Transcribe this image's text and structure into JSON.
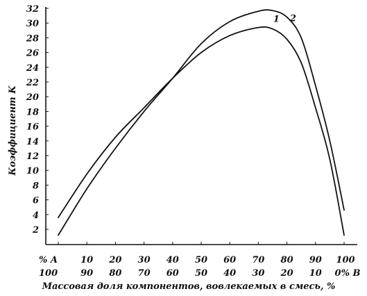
{
  "chart_data": {
    "type": "line",
    "ylabel": "Коэффициент K",
    "xlabel": "Массовая доля компонентов, вовлекаемых в смесь, %",
    "ylim": [
      0,
      32
    ],
    "xlim": [
      0,
      100
    ],
    "yticks": [
      "2",
      "4",
      "6",
      "8",
      "10",
      "12",
      "14",
      "16",
      "18",
      "20",
      "22",
      "24",
      "26",
      "28",
      "30",
      "32"
    ],
    "xticks_a": [
      "% A",
      "10",
      "20",
      "30",
      "40",
      "50",
      "60",
      "70",
      "80",
      "90",
      "100"
    ],
    "xticks_b": [
      "100",
      "90",
      "80",
      "70",
      "60",
      "50",
      "40",
      "30",
      "20",
      "10",
      "0% B"
    ],
    "x_tick_values": [
      0,
      10,
      20,
      30,
      40,
      50,
      60,
      70,
      80,
      90,
      100
    ],
    "grid": false,
    "series": [
      {
        "name": "1",
        "x": [
          0,
          10,
          20,
          30,
          40,
          50,
          60,
          70,
          75,
          80,
          85,
          90,
          95,
          100
        ],
        "y": [
          3.6,
          9.5,
          14.5,
          18.5,
          22.5,
          26,
          28.3,
          29.4,
          29.2,
          27.8,
          24.6,
          18.5,
          11.5,
          1.2
        ]
      },
      {
        "name": "2",
        "x": [
          0,
          10,
          20,
          30,
          40,
          50,
          60,
          70,
          75,
          80,
          85,
          90,
          95,
          100
        ],
        "y": [
          1.2,
          7.5,
          13,
          18,
          22.5,
          27.2,
          30.2,
          31.6,
          31.7,
          30.8,
          28,
          21.5,
          14,
          4.6
        ]
      }
    ]
  }
}
